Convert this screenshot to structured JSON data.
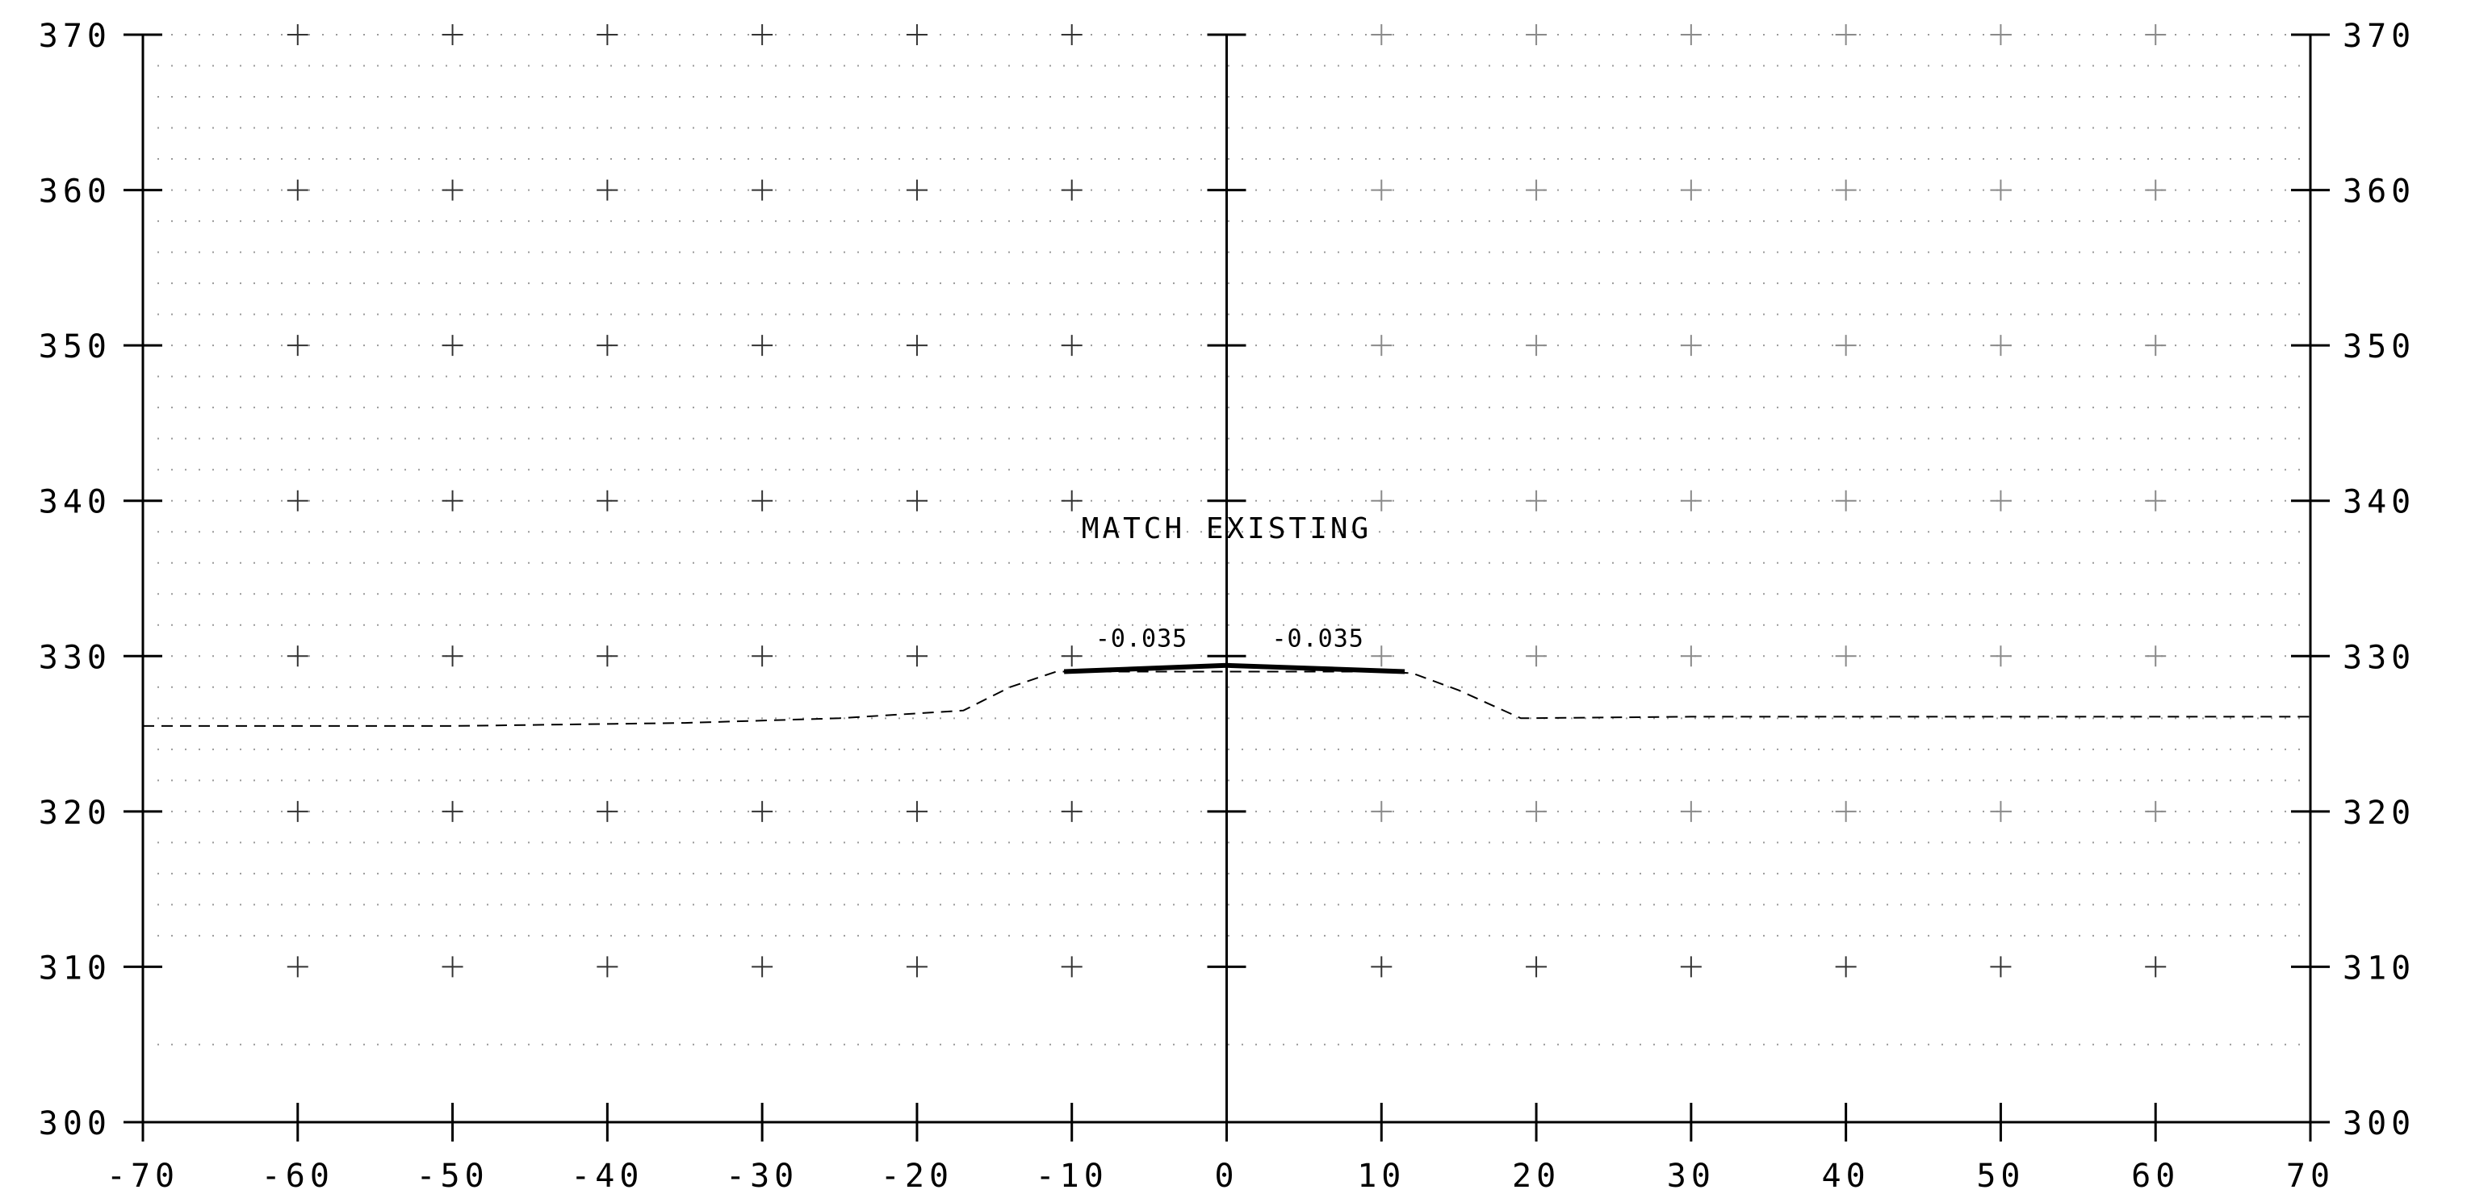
{
  "chart_data": {
    "type": "line",
    "title": "",
    "xlabel": "",
    "ylabel": "",
    "xlim": [
      -70,
      70
    ],
    "ylim": [
      300,
      370
    ],
    "x_ticks": [
      -70,
      -60,
      -50,
      -40,
      -30,
      -20,
      -10,
      0,
      10,
      20,
      30,
      40,
      50,
      60,
      70
    ],
    "x_tick_labels": [
      "-70",
      "-60",
      "-50",
      "-40",
      "-30",
      "-20",
      "-10",
      "0",
      "10",
      "20",
      "30",
      "40",
      "50",
      "60",
      "70"
    ],
    "y_ticks": [
      300,
      310,
      320,
      330,
      340,
      350,
      360,
      370
    ],
    "y_tick_labels": [
      "300",
      "310",
      "320",
      "330",
      "340",
      "350",
      "360",
      "370"
    ],
    "grid": "dotted minor grid with plus markers at major intersections",
    "series": [
      {
        "style": "dashed",
        "x": [
          -70,
          -50,
          -35,
          -25,
          -17,
          -14,
          -11,
          -10,
          10,
          12,
          15,
          19,
          30,
          50,
          70
        ],
        "y": [
          325.5,
          325.5,
          325.7,
          326.0,
          326.5,
          328.0,
          329.0,
          329.0,
          329.0,
          328.9,
          327.8,
          326.0,
          326.1,
          326.1,
          326.1
        ]
      },
      {
        "style": "solid-bold",
        "x": [
          -10.5,
          0,
          11.5
        ],
        "y": [
          329.0,
          329.4,
          329.0
        ]
      }
    ],
    "annotations": [
      {
        "text": "MATCH EXISTING",
        "x": 0,
        "y": 337.6
      },
      {
        "text": "-0.035",
        "x": -5.5,
        "y": 330.6
      },
      {
        "text": "-0.035",
        "x": 5.9,
        "y": 330.6
      }
    ]
  }
}
